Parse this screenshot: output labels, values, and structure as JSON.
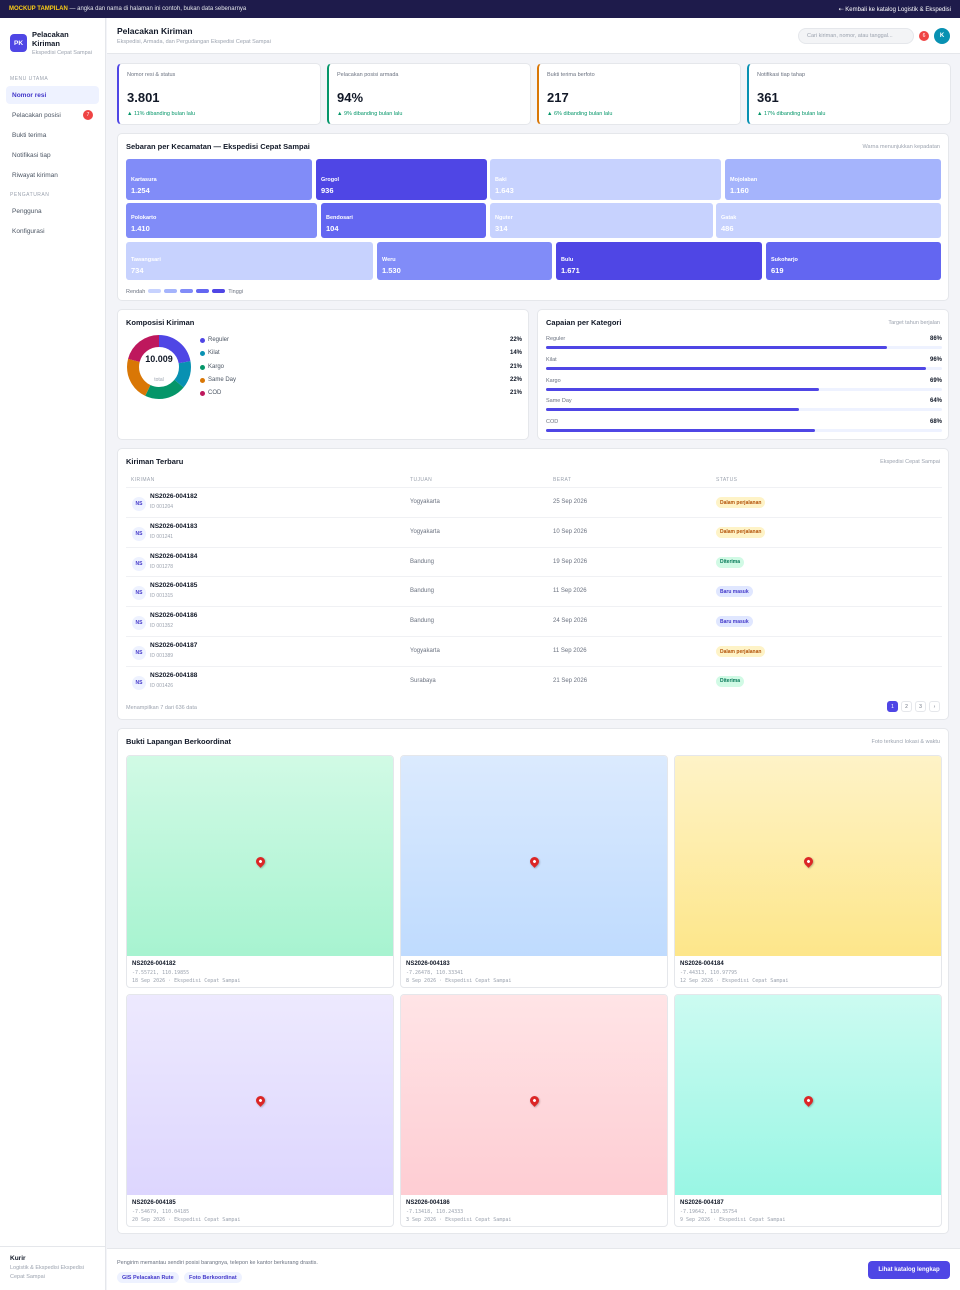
{
  "banner": {
    "tag": "MOCKUP TAMPILAN",
    "text": "— angka dan nama di halaman ini contoh, bukan data sebenarnya",
    "back": "⇠ Kembali ke katalog Logistik & Ekspedisi"
  },
  "brand": {
    "logo": "PK",
    "title": "Pelacakan Kiriman",
    "subtitle": "Ekspedisi Cepat Sampai"
  },
  "sidebar": {
    "main_section": "MENU UTAMA",
    "items": [
      {
        "label": "Nomor resi",
        "badge": ""
      },
      {
        "label": "Pelacakan posisi",
        "badge": "7"
      },
      {
        "label": "Bukti terima",
        "badge": ""
      },
      {
        "label": "Notifikasi tiap",
        "badge": ""
      },
      {
        "label": "Riwayat kiriman",
        "badge": ""
      }
    ],
    "settings_section": "PENGATURAN",
    "settings_items": [
      {
        "label": "Pengguna"
      },
      {
        "label": "Konfigurasi"
      }
    ],
    "footer": {
      "role": "Kurir",
      "line1": "Logistik & Ekspedisi Ekspedisi",
      "line2": "Cepat Sampai"
    }
  },
  "header": {
    "title": "Pelacakan Kiriman",
    "subtitle": "Ekspedisi, Armada, dan Pergudangan Ekspedisi Cepat Sampai",
    "search_placeholder": "Cari kiriman, nomor, atau tanggal...",
    "notif_count": "6",
    "avatar": "K"
  },
  "kpis": [
    {
      "label": "Nomor resi & status",
      "value": "3.801",
      "delta": "▲ 11% dibanding bulan lalu",
      "color": "#4f46e5"
    },
    {
      "label": "Pelacakan posisi armada",
      "value": "94%",
      "delta": "▲ 9% dibanding bulan lalu",
      "color": "#059669"
    },
    {
      "label": "Bukti terima berfoto",
      "value": "217",
      "delta": "▲ 6% dibanding bulan lalu",
      "color": "#d97706"
    },
    {
      "label": "Notifikasi tiap tahap",
      "value": "361",
      "delta": "▲ 17% dibanding bulan lalu",
      "color": "#0891b2"
    }
  ],
  "heatmap": {
    "title": "Sebaran per Kecamatan — Ekspedisi Cepat Sampai",
    "note": "Warna menunjukkan kepadatan",
    "legend_low": "Rendah",
    "legend_high": "Tinggi",
    "scale_colors": [
      "#c7d2fe",
      "#a5b4fc",
      "#818cf8",
      "#6366f1",
      "#4f46e5"
    ],
    "tiles": [
      {
        "name": "Kartasura",
        "count": "1.254",
        "color": "#818cf8"
      },
      {
        "name": "Grogol",
        "count": "936",
        "color": "#4f46e5"
      },
      {
        "name": "Baki",
        "count": "1.643",
        "color": "#c7d2fe"
      },
      {
        "name": "Mojolaban",
        "count": "1.160",
        "color": "#a5b4fc"
      },
      {
        "name": "Polokarto",
        "count": "1.410",
        "color": "#818cf8"
      },
      {
        "name": "Bendosari",
        "count": "104",
        "color": "#6366f1"
      },
      {
        "name": "Nguter",
        "count": "314",
        "color": "#c7d2fe"
      },
      {
        "name": "Gatak",
        "count": "486",
        "color": "#c7d2fe"
      },
      {
        "name": "Tawangsari",
        "count": "734",
        "color": "#c7d2fe"
      },
      {
        "name": "Weru",
        "count": "1.530",
        "color": "#818cf8"
      },
      {
        "name": "Bulu",
        "count": "1.671",
        "color": "#4f46e5"
      },
      {
        "name": "Sukoharjo",
        "count": "619",
        "color": "#6366f1"
      }
    ]
  },
  "composition": {
    "title": "Komposisi Kiriman",
    "total": "10.009",
    "total_label": "total",
    "segments": [
      {
        "name": "Reguler",
        "pct": "22%",
        "value": 22,
        "color": "#4f46e5"
      },
      {
        "name": "Kilat",
        "pct": "14%",
        "value": 14,
        "color": "#0891b2"
      },
      {
        "name": "Kargo",
        "pct": "21%",
        "value": 21,
        "color": "#059669"
      },
      {
        "name": "Same Day",
        "pct": "22%",
        "value": 22,
        "color": "#d97706"
      },
      {
        "name": "COD",
        "pct": "21%",
        "value": 21,
        "color": "#be185d"
      }
    ]
  },
  "achievement": {
    "title": "Capaian per Kategori",
    "note": "Target tahun berjalan",
    "rows": [
      {
        "name": "Reguler",
        "pct": "86%",
        "value": 86
      },
      {
        "name": "Kilat",
        "pct": "96%",
        "value": 96
      },
      {
        "name": "Kargo",
        "pct": "69%",
        "value": 69
      },
      {
        "name": "Same Day",
        "pct": "64%",
        "value": 64
      },
      {
        "name": "COD",
        "pct": "68%",
        "value": 68
      }
    ]
  },
  "shipments": {
    "title": "Kiriman Terbaru",
    "note": "Ekspedisi Cepat Sampai",
    "columns": [
      "KIRIMAN",
      "TUJUAN",
      "BERAT",
      "STATUS"
    ],
    "rows": [
      {
        "initials": "NS",
        "id": "NS2026-004182",
        "sub": "ID 001204",
        "to": "Yogyakarta",
        "date": "25 Sep 2026",
        "status": "Dalam perjalanan",
        "kind": "amber"
      },
      {
        "initials": "NS",
        "id": "NS2026-004183",
        "sub": "ID 001241",
        "to": "Yogyakarta",
        "date": "10 Sep 2026",
        "status": "Dalam perjalanan",
        "kind": "amber"
      },
      {
        "initials": "NS",
        "id": "NS2026-004184",
        "sub": "ID 001278",
        "to": "Bandung",
        "date": "19 Sep 2026",
        "status": "Diterima",
        "kind": "green"
      },
      {
        "initials": "NS",
        "id": "NS2026-004185",
        "sub": "ID 001315",
        "to": "Bandung",
        "date": "11 Sep 2026",
        "status": "Baru masuk",
        "kind": "blue"
      },
      {
        "initials": "NS",
        "id": "NS2026-004186",
        "sub": "ID 001352",
        "to": "Bandung",
        "date": "24 Sep 2026",
        "status": "Baru masuk",
        "kind": "blue"
      },
      {
        "initials": "NS",
        "id": "NS2026-004187",
        "sub": "ID 001389",
        "to": "Yogyakarta",
        "date": "11 Sep 2026",
        "status": "Dalam perjalanan",
        "kind": "amber"
      },
      {
        "initials": "NS",
        "id": "NS2026-004188",
        "sub": "ID 001426",
        "to": "Surabaya",
        "date": "21 Sep 2026",
        "status": "Diterima",
        "kind": "green"
      }
    ],
    "footer": "Menampilkan 7 dari 636 data",
    "pages": [
      "1",
      "2",
      "3",
      "›"
    ]
  },
  "photos": {
    "title": "Bukti Lapangan Berkoordinat",
    "note": "Foto terkunci lokasi & waktu",
    "items": [
      {
        "id": "NS2026-004182",
        "coords": "-7.55721, 110.19855",
        "date": "18 Sep 2026 · Ekspedisi Cepat Sampai",
        "c1": "#d1fae5",
        "c2": "#a7f3d0"
      },
      {
        "id": "NS2026-004183",
        "coords": "-7.26478, 110.33341",
        "date": "8 Sep 2026 · Ekspedisi Cepat Sampai",
        "c1": "#dbeafe",
        "c2": "#bfdbfe"
      },
      {
        "id": "NS2026-004184",
        "coords": "-7.44313, 110.97795",
        "date": "12 Sep 2026 · Ekspedisi Cepat Sampai",
        "c1": "#fef3c7",
        "c2": "#fde68a"
      },
      {
        "id": "NS2026-004185",
        "coords": "-7.54679, 110.04185",
        "date": "20 Sep 2026 · Ekspedisi Cepat Sampai",
        "c1": "#ede9fe",
        "c2": "#ddd6fe"
      },
      {
        "id": "NS2026-004186",
        "coords": "-7.13418, 110.24333",
        "date": "3 Sep 2026 · Ekspedisi Cepat Sampai",
        "c1": "#ffe4e6",
        "c2": "#fecdd3"
      },
      {
        "id": "NS2026-004187",
        "coords": "-7.19642, 110.35754",
        "date": "9 Sep 2026 · Ekspedisi Cepat Sampai",
        "c1": "#ccfbf1",
        "c2": "#99f6e4"
      }
    ]
  },
  "footer": {
    "text": "Pengirim memantau sendiri posisi barangnya, telepon ke kantor berkurang drastis.",
    "chips": [
      "GIS Pelacakan Rute",
      "Foto Berkoordinat"
    ],
    "button": "Lihat katalog lengkap"
  }
}
